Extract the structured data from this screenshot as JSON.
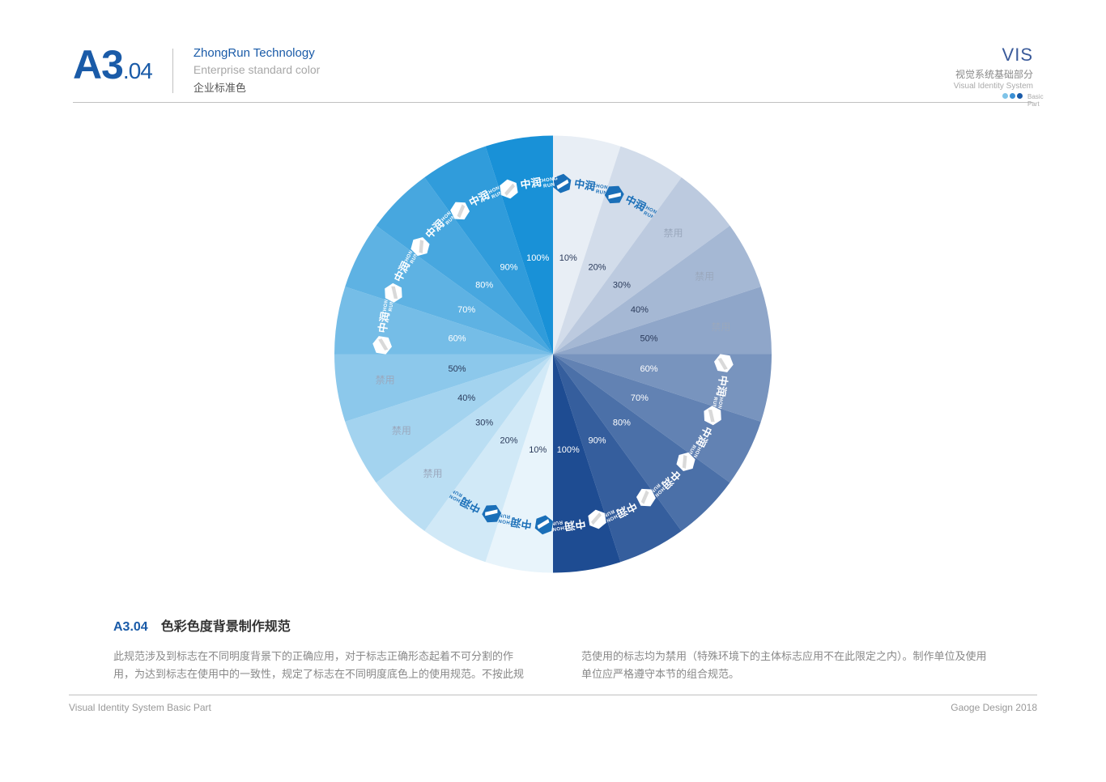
{
  "header": {
    "page_code_main": "A3",
    "page_code_sub": ".04",
    "page_code_color": "#1a5ba8",
    "title_en": "ZhongRun Technology",
    "title_en_color": "#1a5ba8",
    "subtitle_en": "Enterprise standard color",
    "title_cn": "企业标准色"
  },
  "vis": {
    "title": "VIS",
    "cn": "视觉系统基础部分",
    "en": "Visual Identity System",
    "basic": "Basic Part",
    "dot_colors": [
      "#7fc4e8",
      "#3a8fd4",
      "#1a5ba8"
    ]
  },
  "wheel": {
    "radius": 270,
    "inner_label_r": 120,
    "logo_r": 210,
    "slice_angle": 18,
    "logo_cn": "中润",
    "logo_en1": "ZHONG",
    "logo_en2": "RUN",
    "forbidden_text": "禁用",
    "slices": [
      {
        "start": -90,
        "color": "#e8eef5",
        "pct": "10%",
        "pct_color": "#2a3a5a",
        "content": "logo_color"
      },
      {
        "start": -72,
        "color": "#d2dcea",
        "pct": "20%",
        "pct_color": "#2a3a5a",
        "content": "logo_color"
      },
      {
        "start": -54,
        "color": "#bccadf",
        "pct": "30%",
        "pct_color": "#2a3a5a",
        "content": "forbidden"
      },
      {
        "start": -36,
        "color": "#a5b8d4",
        "pct": "40%",
        "pct_color": "#2a3a5a",
        "content": "forbidden"
      },
      {
        "start": -18,
        "color": "#8fa6c9",
        "pct": "50%",
        "pct_color": "#2a3a5a",
        "content": "forbidden"
      },
      {
        "start": 0,
        "color": "#7894be",
        "pct": "60%",
        "pct_color": "#ffffff",
        "content": "logo_white"
      },
      {
        "start": 18,
        "color": "#6282b3",
        "pct": "70%",
        "pct_color": "#ffffff",
        "content": "logo_white"
      },
      {
        "start": 36,
        "color": "#4b70a8",
        "pct": "80%",
        "pct_color": "#ffffff",
        "content": "logo_white"
      },
      {
        "start": 54,
        "color": "#355e9d",
        "pct": "90%",
        "pct_color": "#ffffff",
        "content": "logo_white"
      },
      {
        "start": 72,
        "color": "#1e4c92",
        "pct": "100%",
        "pct_color": "#ffffff",
        "content": "logo_white"
      },
      {
        "start": 90,
        "color": "#e8f4fb",
        "pct": "10%",
        "pct_color": "#2a3a5a",
        "content": "logo_color"
      },
      {
        "start": 108,
        "color": "#d1e9f7",
        "pct": "20%",
        "pct_color": "#2a3a5a",
        "content": "logo_color"
      },
      {
        "start": 126,
        "color": "#badef3",
        "pct": "30%",
        "pct_color": "#2a3a5a",
        "content": "forbidden"
      },
      {
        "start": 144,
        "color": "#a3d3ef",
        "pct": "40%",
        "pct_color": "#2a3a5a",
        "content": "forbidden"
      },
      {
        "start": 162,
        "color": "#8cc8eb",
        "pct": "50%",
        "pct_color": "#2a3a5a",
        "content": "forbidden"
      },
      {
        "start": 180,
        "color": "#75bde7",
        "pct": "60%",
        "pct_color": "#ffffff",
        "content": "logo_white"
      },
      {
        "start": 198,
        "color": "#5eb2e3",
        "pct": "70%",
        "pct_color": "#ffffff",
        "content": "logo_white"
      },
      {
        "start": 216,
        "color": "#47a7df",
        "pct": "80%",
        "pct_color": "#ffffff",
        "content": "logo_white"
      },
      {
        "start": 234,
        "color": "#309cdb",
        "pct": "90%",
        "pct_color": "#ffffff",
        "content": "logo_white"
      },
      {
        "start": 252,
        "color": "#1991d7",
        "pct": "100%",
        "pct_color": "#ffffff",
        "content": "logo_white"
      }
    ],
    "logo_colored_fill": "#1a6fb8"
  },
  "footer": {
    "code": "A3.04",
    "code_color": "#1a5ba8",
    "heading": "色彩色度背景制作规范",
    "col1": "此规范涉及到标志在不同明度背景下的正确应用，对于标志正确形态起着不可分割的作用，为达到标志在使用中的一致性，规定了标志在不同明度底色上的使用规范。不按此规",
    "col2": "范使用的标志均为禁用（特殊环境下的主体标志应用不在此限定之内）。制作单位及使用单位应严格遵守本节的组合规范。"
  },
  "bottom": {
    "left": "Visual Identity System Basic Part",
    "right": "Gaoge Design 2018"
  }
}
